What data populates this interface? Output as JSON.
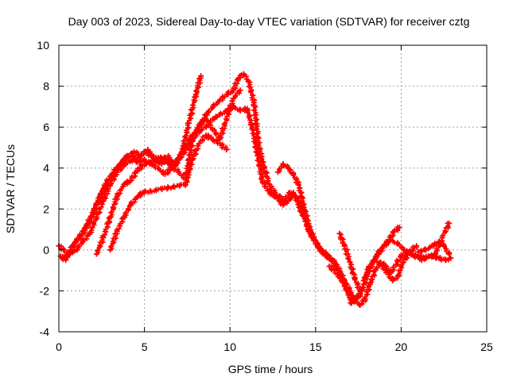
{
  "chart_data": {
    "type": "scatter",
    "title": "Day 003 of 2023, Sidereal Day-to-day VTEC variation (SDTVAR) for receiver cztg",
    "xlabel": "GPS time / hours",
    "ylabel": "SDTVAR / TECUs",
    "xlim": [
      0,
      25
    ],
    "ylim": [
      -4,
      10
    ],
    "xticks": [
      0,
      5,
      10,
      15,
      20,
      25
    ],
    "yticks": [
      -4,
      -2,
      0,
      2,
      4,
      6,
      8,
      10
    ],
    "xtick_labels": [
      "0",
      "5",
      "10",
      "15",
      "20",
      "25"
    ],
    "ytick_labels": [
      "-4",
      "-2",
      "0",
      "2",
      "4",
      "6",
      "8",
      "10"
    ],
    "grid": true,
    "marker": "+",
    "series": [
      {
        "name": "track-1",
        "color": "#ff0000",
        "x": [
          0.1,
          0.4,
          0.8,
          1.2,
          1.6,
          2.0,
          2.4,
          2.8,
          3.2,
          3.6,
          4.0,
          4.4,
          4.8,
          5.2,
          5.6,
          6.0,
          6.4,
          6.8,
          7.2,
          7.6,
          8.0,
          8.3
        ],
        "y": [
          -0.3,
          -0.5,
          0.2,
          0.6,
          1.2,
          1.8,
          2.6,
          3.2,
          3.7,
          4.2,
          4.6,
          4.8,
          4.6,
          4.9,
          4.4,
          4.2,
          4.6,
          4.1,
          4.8,
          6.2,
          7.6,
          8.5
        ]
      },
      {
        "name": "track-2",
        "color": "#ff0000",
        "x": [
          0.0,
          0.3,
          0.6,
          1.0,
          1.4,
          1.8,
          2.2,
          2.6,
          3.0,
          3.4,
          3.8,
          4.2,
          4.6,
          5.0,
          5.4,
          5.8,
          6.2,
          6.6,
          7.0,
          7.4,
          7.8,
          8.2,
          8.6,
          9.0,
          9.4,
          9.8,
          10.2,
          10.5,
          10.8,
          11.1,
          11.4,
          11.7,
          12.0,
          12.3,
          12.6,
          12.9,
          13.2,
          13.5,
          13.8,
          14.1,
          14.4,
          14.7,
          15.0,
          15.3,
          15.6,
          15.9,
          16.2,
          16.5,
          16.8,
          17.1,
          17.4,
          17.7,
          18.0,
          18.3,
          18.6,
          19.0,
          19.4,
          19.8,
          20.2,
          20.6,
          21.0,
          21.4,
          21.8,
          22.2,
          22.6,
          22.9
        ],
        "y": [
          0.2,
          0.0,
          -0.2,
          0.4,
          0.8,
          1.4,
          2.2,
          3.0,
          3.6,
          4.0,
          4.4,
          4.6,
          4.4,
          4.8,
          4.6,
          4.3,
          4.4,
          4.0,
          4.5,
          5.0,
          5.6,
          6.0,
          6.6,
          7.0,
          7.3,
          7.6,
          7.8,
          8.4,
          8.6,
          8.2,
          7.2,
          5.0,
          4.0,
          3.2,
          2.8,
          2.6,
          2.4,
          2.8,
          2.6,
          2.0,
          1.4,
          0.8,
          0.4,
          0.0,
          -0.2,
          -0.4,
          -0.8,
          -1.4,
          -1.9,
          -2.6,
          -2.3,
          -2.0,
          -1.3,
          -0.7,
          -0.2,
          0.2,
          0.5,
          0.3,
          0.0,
          -0.2,
          -0.3,
          -0.4,
          -0.3,
          -0.4,
          -0.5,
          -0.4
        ]
      },
      {
        "name": "track-3",
        "color": "#ff0000",
        "x": [
          0.2,
          0.6,
          1.0,
          1.4,
          1.8,
          2.2,
          2.6,
          3.0,
          3.4,
          3.8,
          4.2,
          4.6,
          5.0,
          5.4,
          5.8,
          6.2,
          6.6,
          7.0,
          7.4,
          7.8,
          8.2,
          8.6,
          9.0,
          9.4,
          9.8,
          10.2,
          10.6,
          11.0,
          11.3,
          11.6,
          11.9,
          12.2,
          12.5,
          12.8,
          13.1,
          13.4,
          13.7,
          14.0,
          14.3,
          14.6,
          14.9,
          15.2,
          15.5,
          15.8,
          16.1,
          16.4,
          16.7,
          17.0,
          17.3,
          17.6,
          17.9,
          18.2,
          18.5,
          18.8,
          19.1,
          19.4,
          19.7,
          20.0,
          20.4,
          20.8,
          21.2,
          21.6,
          22.0,
          22.4,
          22.8
        ],
        "y": [
          -0.4,
          -0.2,
          0.0,
          0.4,
          0.8,
          1.6,
          2.4,
          3.2,
          3.8,
          4.1,
          4.4,
          4.3,
          4.4,
          4.2,
          4.0,
          3.7,
          4.0,
          4.4,
          4.9,
          5.4,
          5.8,
          6.0,
          6.4,
          6.6,
          6.8,
          7.0,
          6.8,
          6.9,
          6.0,
          4.6,
          3.4,
          2.9,
          2.7,
          2.5,
          2.2,
          2.4,
          2.8,
          2.4,
          1.8,
          1.0,
          0.5,
          0.1,
          -0.2,
          -0.4,
          -0.6,
          -1.0,
          -1.5,
          -2.0,
          -2.5,
          -2.7,
          -2.4,
          -1.6,
          -1.0,
          -0.6,
          -0.8,
          -1.1,
          -0.7,
          -0.3,
          -0.1,
          -0.3,
          -0.5,
          -0.3,
          -0.2,
          0.6,
          1.3
        ]
      },
      {
        "name": "track-4",
        "color": "#ff0000",
        "x": [
          2.2,
          2.6,
          3.0,
          3.4,
          3.8,
          4.2,
          4.6,
          5.0,
          5.4,
          5.8,
          6.2,
          6.6,
          7.0,
          7.4,
          7.8,
          8.2,
          8.6,
          9.0,
          9.4,
          9.8,
          10.2,
          10.6
        ],
        "y": [
          -0.2,
          0.6,
          1.6,
          2.6,
          3.2,
          3.4,
          3.9,
          4.2,
          4.3,
          4.5,
          4.5,
          4.1,
          3.8,
          3.5,
          5.3,
          6.1,
          6.4,
          5.9,
          5.4,
          6.4,
          7.4,
          7.8
        ]
      },
      {
        "name": "track-5",
        "color": "#ff0000",
        "x": [
          3.0,
          3.4,
          3.8,
          4.2,
          4.6,
          4.9,
          7.4,
          7.8,
          8.2,
          8.6,
          9.0,
          9.4,
          9.8
        ],
        "y": [
          0.0,
          0.9,
          1.6,
          2.2,
          2.6,
          2.8,
          3.2,
          4.4,
          5.2,
          5.6,
          5.4,
          5.2,
          4.9
        ]
      },
      {
        "name": "track-6",
        "color": "#ff0000",
        "x": [
          12.8,
          13.1,
          13.4,
          13.7,
          14.0,
          14.3,
          14.6,
          14.9
        ],
        "y": [
          3.8,
          4.2,
          4.0,
          3.7,
          3.2,
          2.2,
          1.2,
          0.6
        ]
      },
      {
        "name": "track-7",
        "color": "#ff0000",
        "x": [
          15.8,
          16.1,
          16.4,
          16.7,
          17.0,
          17.3,
          17.6
        ],
        "y": [
          -0.8,
          -1.0,
          -1.3,
          -1.7,
          -2.1,
          -2.4,
          -2.2
        ]
      },
      {
        "name": "track-8",
        "color": "#ff0000",
        "x": [
          16.4,
          16.7,
          17.0,
          17.3,
          17.6
        ],
        "y": [
          0.8,
          0.2,
          -0.6,
          -1.4,
          -2.0
        ]
      },
      {
        "name": "track-9",
        "color": "#ff0000",
        "x": [
          17.8,
          18.1,
          18.4,
          18.7,
          19.0,
          19.3,
          19.6,
          19.9
        ],
        "y": [
          -1.5,
          -0.9,
          -0.5,
          -0.2,
          0.2,
          0.5,
          0.9,
          1.1
        ]
      },
      {
        "name": "track-10",
        "color": "#ff0000",
        "x": [
          18.6,
          18.9,
          19.2,
          19.5,
          19.8,
          20.1,
          20.5,
          20.9
        ],
        "y": [
          -0.6,
          -0.8,
          -1.1,
          -1.5,
          -1.3,
          -0.6,
          -0.1,
          0.2
        ]
      },
      {
        "name": "track-11",
        "color": "#ff0000",
        "x": [
          21.0,
          21.4,
          21.8,
          22.2,
          22.5,
          22.8
        ],
        "y": [
          -0.1,
          0.0,
          0.2,
          0.4,
          0.2,
          -0.2
        ]
      }
    ]
  }
}
